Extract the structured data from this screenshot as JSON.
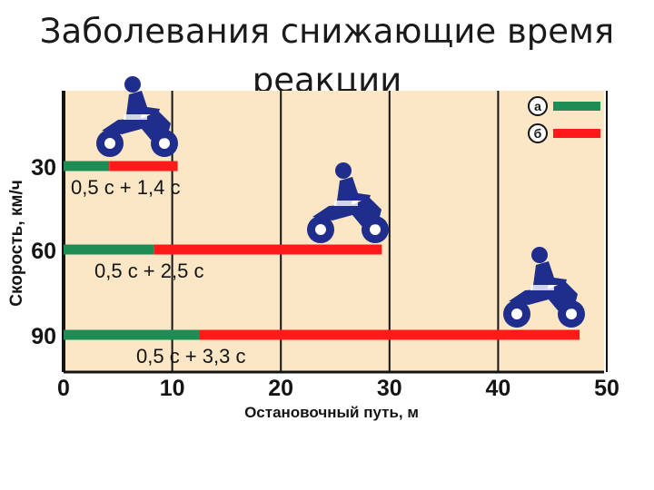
{
  "slide": {
    "title": "Заболевания снижающие время реакции"
  },
  "chart_data": {
    "type": "bar",
    "orientation": "horizontal",
    "stacked": true,
    "xlabel": "Остановочный путь, м",
    "ylabel": "Скорость, км/ч",
    "xlim": [
      0,
      50
    ],
    "xticks": [
      0,
      10,
      20,
      30,
      40,
      50
    ],
    "grid": true,
    "legend_position": "top-right",
    "colors": {
      "background": "#FBE7C6",
      "a": "#1E8C55",
      "b": "#FF1A1A",
      "ink": "#141414",
      "moto": "#1F2D8C"
    },
    "legend": [
      {
        "key": "a",
        "label": "а"
      },
      {
        "key": "b",
        "label": "б"
      }
    ],
    "rows": [
      {
        "speed": "30",
        "a": 4.2,
        "b": 6.3,
        "label": "0,5 с + 1,4 с",
        "icon": "motorcycle-icon"
      },
      {
        "speed": "60",
        "a": 8.3,
        "b": 21.0,
        "label": "0,5 с + 2,5 с",
        "icon": "motorcycle-icon"
      },
      {
        "speed": "90",
        "a": 12.5,
        "b": 35.0,
        "label": "0,5 с + 3,3 с",
        "icon": "motorcycle-icon"
      }
    ]
  }
}
